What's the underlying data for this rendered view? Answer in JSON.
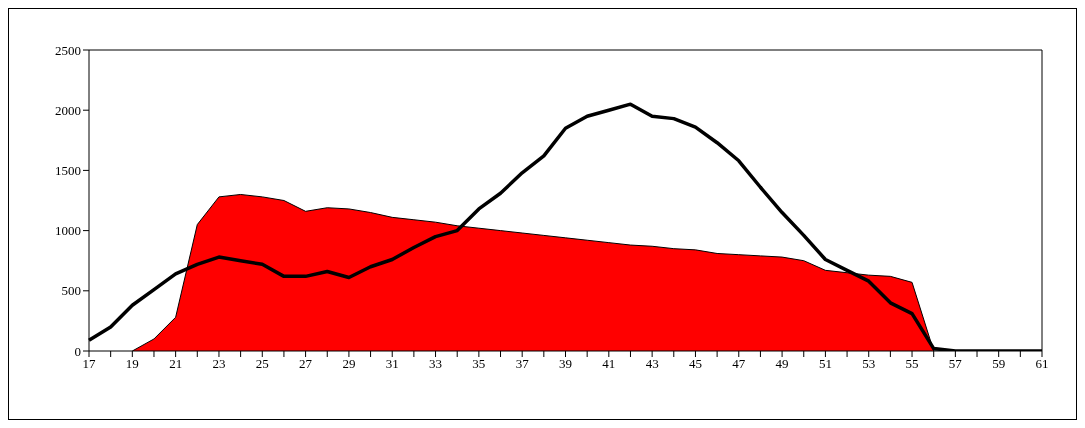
{
  "chart_data": {
    "type": "area",
    "categories": [
      "17",
      null,
      "19",
      null,
      "21",
      null,
      "23",
      null,
      "25",
      null,
      "27",
      null,
      "29",
      null,
      "31",
      null,
      "33",
      null,
      "35",
      null,
      "37",
      null,
      "39",
      null,
      "41",
      null,
      "43",
      null,
      "45",
      null,
      "47",
      null,
      "49",
      null,
      "51",
      null,
      "53",
      null,
      "55",
      null,
      "57",
      null,
      "59",
      null,
      "61"
    ],
    "series": [
      {
        "color": "#ff0000",
        "values": [
          null,
          null,
          0,
          100,
          280,
          1050,
          1280,
          1300,
          1280,
          1250,
          1160,
          1190,
          1180,
          1150,
          1110,
          1090,
          1070,
          1040,
          1020,
          1000,
          980,
          960,
          940,
          920,
          900,
          880,
          870,
          850,
          840,
          810,
          800,
          790,
          780,
          750,
          670,
          650,
          630,
          620,
          570,
          0,
          0,
          0,
          0,
          0,
          0
        ]
      },
      {
        "type": "line",
        "color": "#000000",
        "values": [
          90,
          200,
          380,
          510,
          640,
          720,
          780,
          750,
          720,
          620,
          620,
          660,
          610,
          700,
          760,
          860,
          950,
          1000,
          1180,
          1310,
          1480,
          1620,
          1850,
          1950,
          2000,
          2050,
          1950,
          1930,
          1860,
          1730,
          1580,
          1360,
          1150,
          960,
          760,
          670,
          580,
          400,
          310,
          20,
          0,
          0,
          0,
          0,
          0
        ]
      }
    ],
    "ylim": [
      0,
      2500
    ],
    "yticks": [
      0,
      500,
      1000,
      1500,
      2000,
      2500
    ],
    "grid": false,
    "legend": false,
    "marker": "none",
    "line_style": "solid"
  }
}
